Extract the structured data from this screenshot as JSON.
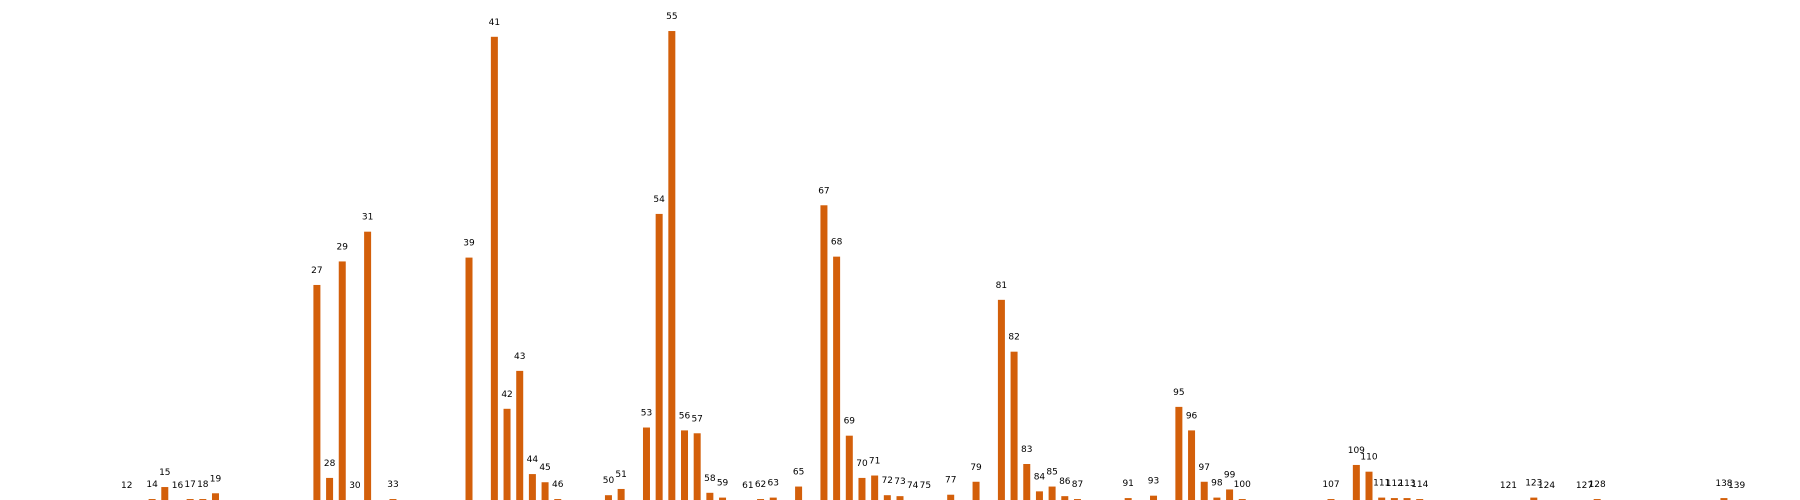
{
  "chart_data": {
    "type": "bar",
    "color": "#d35f0a",
    "x": [
      12,
      14,
      15,
      16,
      17,
      18,
      19,
      27,
      28,
      29,
      30,
      31,
      33,
      39,
      41,
      42,
      43,
      44,
      45,
      46,
      50,
      51,
      53,
      54,
      55,
      56,
      57,
      58,
      59,
      61,
      62,
      63,
      65,
      67,
      68,
      69,
      70,
      71,
      72,
      73,
      74,
      75,
      77,
      79,
      81,
      82,
      83,
      84,
      85,
      86,
      87,
      91,
      93,
      95,
      96,
      97,
      98,
      99,
      100,
      107,
      109,
      110,
      111,
      112,
      113,
      114,
      121,
      123,
      124,
      127,
      128,
      138,
      139
    ],
    "values": [
      0.0,
      0.2,
      2.7,
      0.0,
      0.2,
      0.2,
      1.4,
      44.8,
      4.6,
      49.7,
      0.0,
      55.9,
      0.2,
      50.5,
      96.5,
      19.0,
      26.9,
      5.4,
      3.7,
      0.2,
      1.0,
      2.3,
      15.1,
      59.6,
      97.7,
      14.5,
      13.9,
      1.5,
      0.5,
      0.0,
      0.2,
      0.5,
      2.8,
      61.4,
      50.7,
      13.4,
      4.6,
      5.1,
      1.0,
      0.8,
      0.0,
      0.0,
      1.1,
      3.8,
      41.7,
      30.9,
      7.5,
      1.8,
      2.8,
      0.8,
      0.2,
      0.4,
      0.9,
      19.4,
      14.5,
      3.8,
      0.5,
      2.2,
      0.2,
      0.2,
      7.3,
      5.9,
      0.5,
      0.4,
      0.4,
      0.2,
      0.0,
      0.5,
      0.0,
      0.0,
      0.2,
      0.4,
      0.0
    ],
    "labels": [
      "12",
      "14",
      "15",
      "16",
      "17",
      "18",
      "19",
      "27",
      "28",
      "29",
      "30",
      "31",
      "33",
      "39",
      "41",
      "42",
      "43",
      "44",
      "45",
      "46",
      "50",
      "51",
      "53",
      "54",
      "55",
      "56",
      "57",
      "58",
      "59",
      "61",
      "62",
      "63",
      "65",
      "67",
      "68",
      "69",
      "70",
      "71",
      "72",
      "73",
      "74",
      "75",
      "77",
      "79",
      "81",
      "82",
      "83",
      "84",
      "85",
      "86",
      "87",
      "91",
      "93",
      "95",
      "96",
      "97",
      "98",
      "99",
      "100",
      "107",
      "109",
      "110",
      "111",
      "112",
      "113",
      "114",
      "121",
      "123",
      "124",
      "127",
      "128",
      "138",
      "139"
    ],
    "xlim": [
      2,
      144
    ],
    "ylim": [
      0,
      100
    ],
    "title": "",
    "xlabel": "",
    "ylabel": "",
    "grid": false,
    "legend": "none"
  }
}
